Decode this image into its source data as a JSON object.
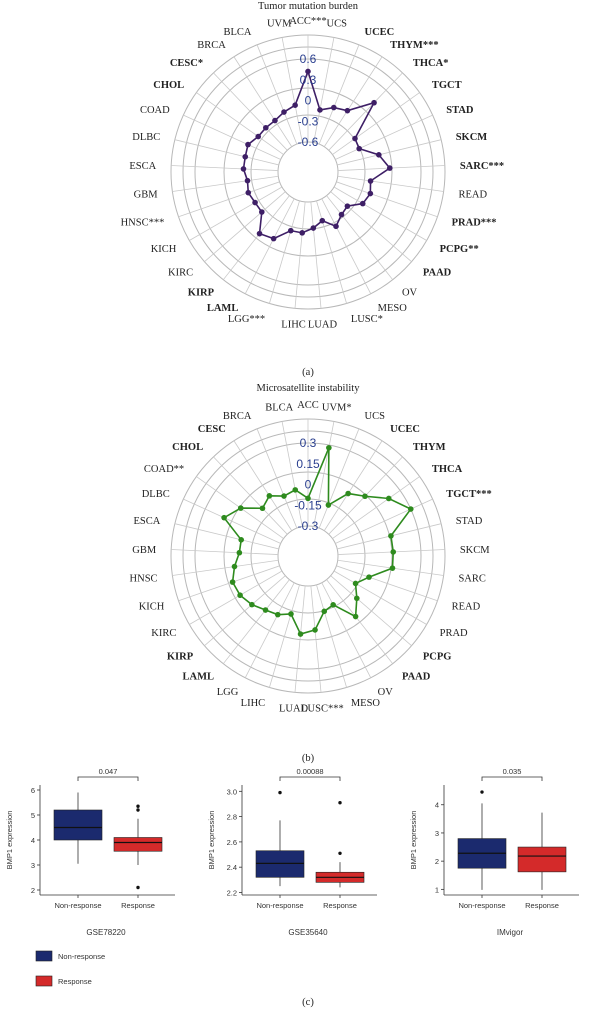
{
  "colors": {
    "tmb": "#3e1f66",
    "msi": "#2e8b1e",
    "non_response": "#1b2a6e",
    "response": "#d42a2a",
    "tick": "#2a3f8f"
  },
  "panel_labels": {
    "a": "(a)",
    "b": "(b)",
    "c": "(c)"
  },
  "chart_data": [
    {
      "type": "radar",
      "title": "Tumor mutation burden",
      "ticks": [
        "0.6",
        "0.3",
        "0",
        "-0.3",
        "-0.6"
      ],
      "rlim": [
        -0.6,
        0.6
      ],
      "categories": [
        "ACC",
        "UCS",
        "UCEC",
        "THYM",
        "THCA",
        "TGCT",
        "STAD",
        "SKCM",
        "SARC",
        "READ",
        "PRAD",
        "PCPG",
        "PAAD",
        "OV",
        "MESO",
        "LUSC",
        "LUAD",
        "LIHC",
        "LGG",
        "LAML",
        "KIRP",
        "KIRC",
        "KICH",
        "HNSC",
        "GBM",
        "ESCA",
        "DLBC",
        "COAD",
        "CHOL",
        "CESC",
        "BRCA",
        "BLCA",
        "UVM"
      ],
      "labels": [
        "ACC***",
        "UCS",
        "UCEC",
        "THYM***",
        "THCA*",
        "TGCT",
        "STAD",
        "SKCM",
        "SARC***",
        "READ",
        "PRAD***",
        "PCPG**",
        "PAAD",
        "OV",
        "MESO",
        "LUSC*",
        "LUAD",
        "LIHC",
        "LGG***",
        "LAML",
        "KIRP",
        "KIRC",
        "KICH",
        "HNSC***",
        "GBM",
        "ESCA",
        "DLBC",
        "COAD",
        "CHOL",
        "CESC*",
        "BRCA",
        "BLCA",
        "UVM"
      ],
      "values": [
        0.42,
        -0.12,
        -0.03,
        0.02,
        0.35,
        -0.2,
        -0.22,
        0.02,
        0.15,
        -0.12,
        -0.08,
        -0.12,
        -0.28,
        -0.25,
        -0.15,
        -0.3,
        -0.22,
        -0.15,
        -0.15,
        0.05,
        0.1,
        -0.15,
        -0.15,
        -0.12,
        -0.15,
        -0.1,
        -0.1,
        -0.08,
        -0.15,
        -0.15,
        -0.15,
        -0.1,
        -0.05
      ]
    },
    {
      "type": "radar",
      "title": "Microsatellite instability",
      "ticks": [
        "0.3",
        "0.15",
        "0",
        "-0.15",
        "-0.3"
      ],
      "rlim": [
        -0.3,
        0.3
      ],
      "categories": [
        "ACC",
        "UVM",
        "UCS",
        "UCEC",
        "THYM",
        "THCA",
        "TGCT",
        "STAD",
        "SKCM",
        "SARC",
        "READ",
        "PRAD",
        "PCPG",
        "PAAD",
        "OV",
        "MESO",
        "LUSC",
        "LUAD",
        "LIHC",
        "LGG",
        "LAML",
        "KIRP",
        "KIRC",
        "KICH",
        "HNSC",
        "GBM",
        "ESCA",
        "DLBC",
        "COAD",
        "CHOL",
        "CESC",
        "BRCA",
        "BLCA"
      ],
      "labels": [
        "ACC",
        "UVM*",
        "UCS",
        "UCEC",
        "THYM",
        "THCA",
        "TGCT***",
        "STAD",
        "SKCM",
        "SARC",
        "READ",
        "PRAD",
        "PCPG",
        "PAAD",
        "OV",
        "MESO",
        "LUSC***",
        "LUAD",
        "LIHC",
        "LGG",
        "LAML",
        "KIRP",
        "KIRC",
        "KICH",
        "HNSC",
        "GBM",
        "ESCA",
        "DLBC",
        "COAD**",
        "CHOL",
        "CESC",
        "BRCA",
        "BLCA"
      ],
      "values": [
        -0.1,
        0.28,
        -0.12,
        0.02,
        0.08,
        0.2,
        0.3,
        0.1,
        0.1,
        0.1,
        -0.05,
        -0.12,
        -0.05,
        0.04,
        -0.12,
        -0.1,
        0.02,
        0.05,
        -0.08,
        -0.04,
        -0.02,
        0.02,
        0.05,
        0.06,
        0.02,
        -0.02,
        -0.02,
        0.15,
        0.08,
        -0.04,
        0.0,
        -0.05,
        -0.03
      ]
    },
    {
      "type": "box",
      "dataset": "GSE78220",
      "ylabel": "BMP1 expression",
      "ylim": [
        1.8,
        6.2
      ],
      "yticks": [
        "2",
        "3",
        "4",
        "5",
        "6"
      ],
      "pvalue": "0.047",
      "groups": [
        {
          "name": "Non-response",
          "min": 3.05,
          "q1": 4.0,
          "median": 4.5,
          "q3": 5.2,
          "max": 5.9,
          "outliers": []
        },
        {
          "name": "Response",
          "min": 3.0,
          "q1": 3.55,
          "median": 3.9,
          "q3": 4.1,
          "max": 4.85,
          "outliers": [
            5.35,
            5.2,
            2.1
          ]
        }
      ]
    },
    {
      "type": "box",
      "dataset": "GSE35640",
      "ylabel": "BMP1 expression",
      "ylim": [
        2.18,
        3.05
      ],
      "yticks": [
        "2.2",
        "2.4",
        "2.6",
        "2.8",
        "3.0"
      ],
      "pvalue": "0.00088",
      "groups": [
        {
          "name": "Non-response",
          "min": 2.25,
          "q1": 2.32,
          "median": 2.43,
          "q3": 2.53,
          "max": 2.77,
          "outliers": [
            2.99
          ]
        },
        {
          "name": "Response",
          "min": 2.24,
          "q1": 2.28,
          "median": 2.32,
          "q3": 2.36,
          "max": 2.44,
          "outliers": [
            2.91,
            2.51
          ]
        }
      ]
    },
    {
      "type": "box",
      "dataset": "IMvigor",
      "ylabel": "BMP1 expression",
      "ylim": [
        0.8,
        4.7
      ],
      "yticks": [
        "1",
        "2",
        "3",
        "4"
      ],
      "pvalue": "0.035",
      "groups": [
        {
          "name": "Non-response",
          "min": 0.98,
          "q1": 1.75,
          "median": 2.28,
          "q3": 2.8,
          "max": 4.05,
          "outliers": [
            4.45
          ]
        },
        {
          "name": "Response",
          "min": 0.98,
          "q1": 1.62,
          "median": 2.18,
          "q3": 2.5,
          "max": 3.72,
          "outliers": []
        }
      ]
    }
  ],
  "legend": {
    "items": [
      "Non-response",
      "Response"
    ]
  }
}
